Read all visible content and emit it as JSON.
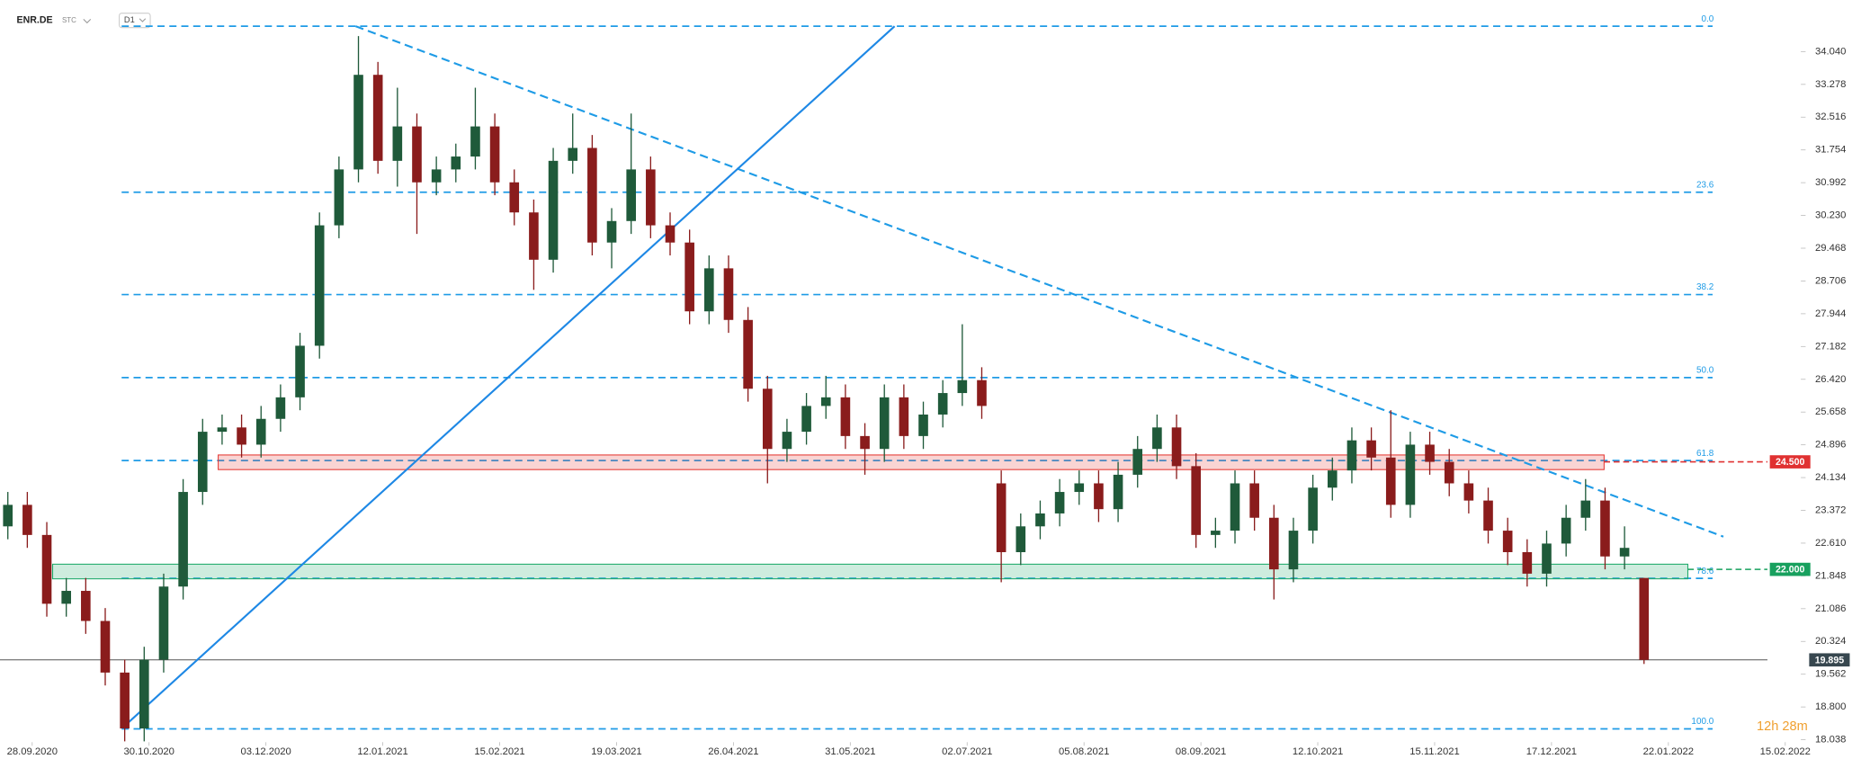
{
  "header": {
    "symbol": "ENR.DE",
    "market": "STC",
    "interval": "D1"
  },
  "timer": "12h 28m",
  "chart_data": {
    "type": "candlestick",
    "x": [
      -5,
      -1,
      3,
      7,
      11,
      15,
      19,
      23,
      27,
      31,
      35,
      39,
      43,
      47,
      51,
      55,
      59,
      63,
      67,
      71,
      75,
      79,
      83,
      87,
      91,
      95,
      99,
      103,
      107,
      111,
      115,
      119,
      123,
      127,
      131,
      135,
      139,
      143,
      147,
      151,
      155,
      159,
      163,
      167,
      171,
      175,
      179,
      183,
      187,
      191,
      195,
      199,
      203,
      207,
      211,
      215,
      219,
      223,
      227,
      231,
      235,
      239,
      243,
      247,
      251,
      255,
      259,
      263,
      267,
      271,
      275,
      279,
      283,
      287,
      291,
      295,
      299,
      303,
      307,
      311,
      315,
      319,
      323,
      327,
      331
    ],
    "open": [
      23.0,
      23.5,
      22.8,
      21.2,
      21.5,
      20.8,
      19.6,
      18.3,
      19.9,
      21.6,
      23.8,
      25.2,
      25.3,
      24.9,
      25.5,
      26.0,
      27.2,
      30.0,
      31.3,
      33.5,
      31.5,
      32.3,
      31.0,
      31.3,
      31.6,
      32.3,
      31.0,
      30.3,
      29.2,
      31.5,
      31.8,
      29.6,
      30.1,
      31.3,
      30.0,
      29.6,
      28.0,
      29.0,
      27.8,
      26.2,
      24.8,
      25.2,
      25.8,
      26.0,
      25.1,
      24.8,
      26.0,
      25.1,
      25.6,
      26.1,
      26.4,
      24.0,
      22.4,
      23.0,
      23.3,
      23.8,
      24.0,
      23.4,
      24.2,
      24.8,
      25.3,
      24.4,
      22.8,
      22.9,
      24.0,
      23.2,
      22.0,
      22.9,
      23.9,
      24.3,
      25.0,
      24.6,
      23.5,
      24.9,
      24.5,
      24.0,
      23.6,
      22.9,
      22.4,
      21.9,
      22.6,
      23.2,
      23.6,
      22.3,
      21.8
    ],
    "high": [
      23.8,
      23.8,
      23.1,
      21.8,
      21.8,
      21.1,
      19.9,
      20.2,
      21.9,
      24.1,
      25.5,
      25.6,
      25.6,
      25.8,
      26.3,
      27.5,
      30.3,
      31.6,
      34.4,
      33.8,
      33.2,
      32.6,
      31.6,
      31.9,
      33.2,
      32.6,
      31.3,
      30.6,
      31.8,
      32.6,
      32.1,
      30.4,
      32.6,
      31.6,
      30.3,
      29.9,
      29.3,
      29.3,
      28.1,
      26.5,
      25.5,
      26.1,
      26.5,
      26.3,
      25.4,
      26.3,
      26.3,
      25.9,
      26.4,
      27.7,
      26.7,
      24.3,
      23.3,
      23.6,
      24.1,
      24.3,
      24.3,
      24.5,
      25.1,
      25.6,
      25.6,
      24.7,
      23.2,
      24.3,
      24.3,
      23.5,
      23.2,
      24.2,
      24.6,
      25.3,
      25.3,
      25.7,
      25.2,
      25.2,
      24.8,
      24.3,
      23.9,
      23.2,
      22.7,
      22.9,
      23.5,
      24.1,
      23.9,
      23.0,
      21.8
    ],
    "low": [
      22.7,
      22.5,
      20.9,
      20.9,
      20.5,
      19.3,
      18.0,
      18.0,
      19.6,
      21.3,
      23.5,
      24.9,
      24.6,
      24.6,
      25.2,
      25.7,
      26.9,
      29.7,
      31.0,
      31.2,
      30.9,
      29.8,
      30.7,
      31.0,
      31.3,
      30.7,
      30.0,
      28.5,
      28.9,
      31.2,
      29.3,
      29.0,
      29.8,
      29.7,
      29.3,
      27.7,
      27.7,
      27.5,
      25.9,
      24.0,
      24.5,
      24.9,
      25.5,
      24.8,
      24.2,
      24.5,
      24.8,
      24.8,
      25.3,
      25.8,
      25.5,
      21.7,
      22.1,
      22.7,
      23.0,
      23.5,
      23.1,
      23.1,
      23.9,
      24.5,
      24.1,
      22.5,
      22.5,
      22.6,
      22.9,
      21.3,
      21.7,
      22.6,
      23.6,
      24.0,
      24.3,
      23.2,
      23.2,
      24.2,
      23.7,
      23.3,
      22.6,
      22.1,
      21.6,
      21.6,
      22.3,
      22.9,
      22.0,
      22.0,
      19.8
    ],
    "close": [
      23.5,
      22.8,
      21.2,
      21.5,
      20.8,
      19.6,
      18.3,
      19.9,
      21.6,
      23.8,
      25.2,
      25.3,
      24.9,
      25.5,
      26.0,
      27.2,
      30.0,
      31.3,
      33.5,
      31.5,
      32.3,
      31.0,
      31.3,
      31.6,
      32.3,
      31.0,
      30.3,
      29.2,
      31.5,
      31.8,
      29.6,
      30.1,
      31.3,
      30.0,
      29.6,
      28.0,
      29.0,
      27.8,
      26.2,
      24.8,
      25.2,
      25.8,
      26.0,
      25.1,
      24.8,
      26.0,
      25.1,
      25.6,
      26.1,
      26.4,
      25.8,
      22.4,
      23.0,
      23.3,
      23.8,
      24.0,
      23.4,
      24.2,
      24.8,
      25.3,
      24.4,
      22.8,
      22.9,
      24.0,
      23.2,
      22.0,
      22.9,
      23.9,
      24.3,
      25.0,
      24.6,
      23.5,
      24.9,
      24.5,
      24.0,
      23.6,
      22.9,
      22.4,
      21.9,
      22.6,
      23.2,
      23.6,
      22.3,
      22.5,
      19.895
    ],
    "up_color": "#1f5a3a",
    "down_color": "#8a1c1c",
    "xlim": [
      -6.61,
      363.2
    ],
    "ylim": [
      17.59,
      35.24
    ],
    "xticks": [
      {
        "value": 0,
        "label": "28.09.2020"
      },
      {
        "value": 24,
        "label": "30.10.2020"
      },
      {
        "value": 48,
        "label": "03.12.2020"
      },
      {
        "value": 72,
        "label": "12.01.2021"
      },
      {
        "value": 96,
        "label": "15.02.2021"
      },
      {
        "value": 120,
        "label": "19.03.2021"
      },
      {
        "value": 144,
        "label": "26.04.2021"
      },
      {
        "value": 168,
        "label": "31.05.2021"
      },
      {
        "value": 192,
        "label": "02.07.2021"
      },
      {
        "value": 216,
        "label": "05.08.2021"
      },
      {
        "value": 240,
        "label": "08.09.2021"
      },
      {
        "value": 264,
        "label": "12.10.2021"
      },
      {
        "value": 288,
        "label": "15.11.2021"
      },
      {
        "value": 312,
        "label": "17.12.2021"
      },
      {
        "value": 336,
        "label": "22.01.2022"
      },
      {
        "value": 360,
        "label": "15.02.2022"
      }
    ],
    "yticks": [
      {
        "value": 34.04,
        "label": "34.040"
      },
      {
        "value": 33.278,
        "label": "33.278"
      },
      {
        "value": 32.516,
        "label": "32.516"
      },
      {
        "value": 31.754,
        "label": "31.754"
      },
      {
        "value": 30.992,
        "label": "30.992"
      },
      {
        "value": 30.23,
        "label": "30.230"
      },
      {
        "value": 29.468,
        "label": "29.468"
      },
      {
        "value": 28.706,
        "label": "28.706"
      },
      {
        "value": 27.944,
        "label": "27.944"
      },
      {
        "value": 27.182,
        "label": "27.182"
      },
      {
        "value": 26.42,
        "label": "26.420"
      },
      {
        "value": 25.658,
        "label": "25.658"
      },
      {
        "value": 24.896,
        "label": "24.896"
      },
      {
        "value": 24.134,
        "label": "24.134"
      },
      {
        "value": 23.372,
        "label": "23.372"
      },
      {
        "value": 22.61,
        "label": "22.610"
      },
      {
        "value": 21.848,
        "label": "21.848"
      },
      {
        "value": 21.086,
        "label": "21.086"
      },
      {
        "value": 20.324,
        "label": "20.324"
      },
      {
        "value": 19.562,
        "label": "19.562"
      },
      {
        "value": 18.8,
        "label": "18.800"
      },
      {
        "value": 18.038,
        "label": "18.038"
      }
    ],
    "fib_color": "#1e9be6",
    "fib_levels": [
      {
        "label": "0.0",
        "value": 34.63
      },
      {
        "label": "23.6",
        "value": 30.77
      },
      {
        "label": "38.2",
        "value": 28.39
      },
      {
        "label": "50.0",
        "value": 26.46
      },
      {
        "label": "61.8",
        "value": 24.53
      },
      {
        "label": "78.6",
        "value": 21.79
      },
      {
        "label": "100.0",
        "value": 18.29
      }
    ],
    "trend_lines": [
      {
        "x": [
          66.4,
          347.3
        ],
        "y": [
          34.63,
          22.76
        ],
        "color": "#1e9be6",
        "dashed": true
      },
      {
        "x": [
          18.6,
          177.1
        ],
        "y": [
          18.32,
          34.63
        ],
        "color": "#1e88e5",
        "dashed": false
      }
    ],
    "zones": [
      {
        "x": [
          38.2,
          322.8
        ],
        "y": [
          24.32,
          24.66
        ],
        "color": "#e53935"
      },
      {
        "x": [
          4.2,
          340
        ],
        "y": [
          21.78,
          22.12
        ],
        "color": "#1faa6b"
      }
    ],
    "price_tags": [
      {
        "label": "24.500",
        "value": 24.5,
        "color": "#e03131",
        "from": 322.8
      },
      {
        "label": "22.000",
        "value": 22.0,
        "color": "#18a05e",
        "from": 340
      },
      {
        "label": "19.895",
        "value": 19.895,
        "color": "#37474f",
        "from": -6.61
      }
    ]
  }
}
